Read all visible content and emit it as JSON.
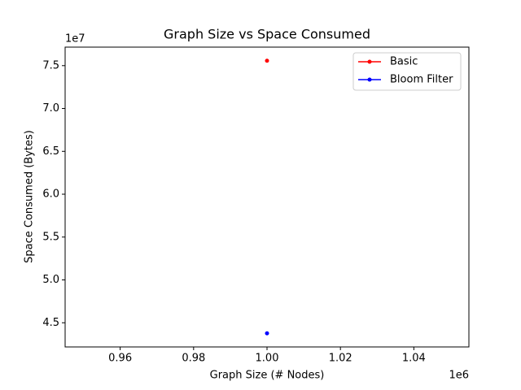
{
  "chart_data": {
    "type": "line",
    "title": "Graph Size vs Space Consumed",
    "x_label": "Graph Size (# Nodes)",
    "y_label": "Space Consumed (Bytes)",
    "x_offset_label": "1e6",
    "y_offset_label": "1e7",
    "x": [
      1000000
    ],
    "series": [
      {
        "name": "Basic",
        "color": "#ff0000",
        "values": [
          75570000
        ]
      },
      {
        "name": "Bloom Filter",
        "color": "#0000ff",
        "values": [
          43770000
        ]
      }
    ],
    "xlim": [
      945000,
      1055000
    ],
    "xticks": [
      {
        "value": 960000,
        "label": "0.96"
      },
      {
        "value": 980000,
        "label": "0.98"
      },
      {
        "value": 1000000,
        "label": "1.00"
      },
      {
        "value": 1020000,
        "label": "1.02"
      },
      {
        "value": 1040000,
        "label": "1.04"
      }
    ],
    "ylim": [
      42180000,
      77160000
    ],
    "yticks": [
      {
        "value": 45000000,
        "label": "4.5"
      },
      {
        "value": 50000000,
        "label": "5.0"
      },
      {
        "value": 55000000,
        "label": "5.5"
      },
      {
        "value": 60000000,
        "label": "6.0"
      },
      {
        "value": 65000000,
        "label": "6.5"
      },
      {
        "value": 70000000,
        "label": "7.0"
      },
      {
        "value": 75000000,
        "label": "7.5"
      }
    ],
    "grid": false,
    "legend": "upper right"
  }
}
